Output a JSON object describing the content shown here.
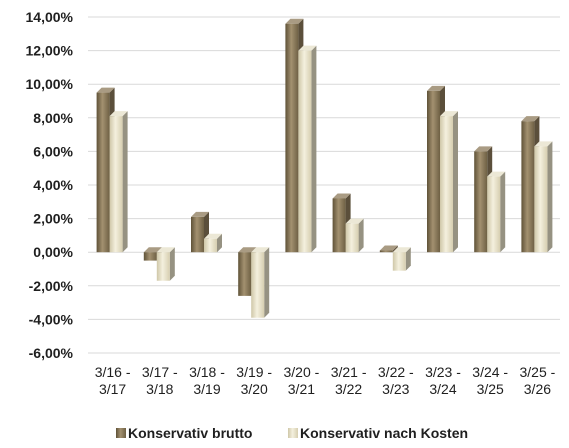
{
  "chart_data": {
    "type": "bar",
    "title": "",
    "xlabel": "",
    "ylabel": "",
    "categories": [
      [
        "3/16 -",
        "3/17"
      ],
      [
        "3/17 -",
        "3/18"
      ],
      [
        "3/18 -",
        "3/19"
      ],
      [
        "3/19 -",
        "3/20"
      ],
      [
        "3/20 -",
        "3/21"
      ],
      [
        "3/21 -",
        "3/22"
      ],
      [
        "3/22 -",
        "3/23"
      ],
      [
        "3/23 -",
        "3/24"
      ],
      [
        "3/24 -",
        "3/25"
      ],
      [
        "3/25 -",
        "3/26"
      ]
    ],
    "series": [
      {
        "name": "Konservativ brutto",
        "color": "#8c7a5a",
        "values": [
          9.5,
          -0.5,
          2.1,
          -2.6,
          13.6,
          3.2,
          0.1,
          9.6,
          6.0,
          7.8
        ]
      },
      {
        "name": "Konservativ nach Kosten",
        "color": "#e6e0c8",
        "values": [
          8.1,
          -1.7,
          0.8,
          -3.9,
          12.0,
          1.7,
          -1.1,
          8.1,
          4.5,
          6.3
        ]
      }
    ],
    "ylim": [
      -6,
      14
    ],
    "ytick_step": 2,
    "ytick_labels": [
      "14,00%",
      "12,00%",
      "10,00%",
      "8,00%",
      "6,00%",
      "4,00%",
      "2,00%",
      "0,00%",
      "-2,00%",
      "-4,00%",
      "-6,00%"
    ],
    "grid": true,
    "legend_position": "bottom",
    "style": "3d-column"
  }
}
